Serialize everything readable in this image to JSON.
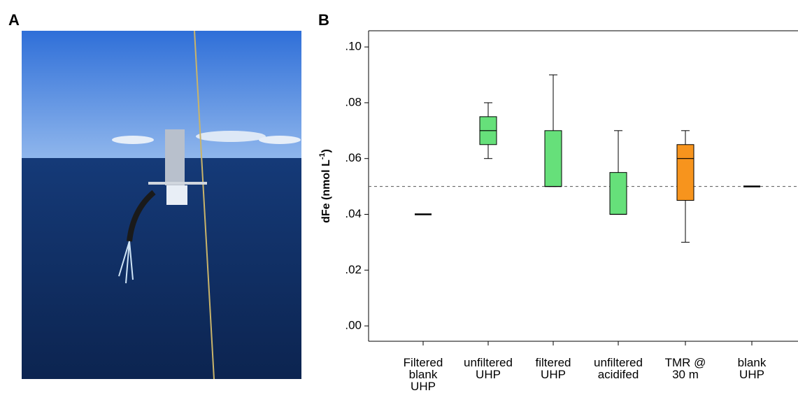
{
  "panels": {
    "a": "A",
    "b": "B"
  },
  "chart_data": {
    "type": "box",
    "ylabel": {
      "text": "dFe (nmol L",
      "superscript": "-1",
      "close": ")"
    },
    "categories": [
      [
        "Filtered",
        "blank",
        "UHP"
      ],
      [
        "unfiltered",
        "UHP"
      ],
      [
        "filtered",
        "UHP"
      ],
      [
        "unfiltered",
        "acidifed"
      ],
      [
        "TMR @",
        "30 m"
      ],
      [
        "blank",
        "UHP"
      ]
    ],
    "min": [
      0.04,
      0.06,
      0.05,
      0.04,
      0.03,
      0.05
    ],
    "q1": [
      0.04,
      0.065,
      0.05,
      0.04,
      0.045,
      0.05
    ],
    "median": [
      0.04,
      0.07,
      0.05,
      0.04,
      0.06,
      0.05
    ],
    "q3": [
      0.04,
      0.075,
      0.07,
      0.055,
      0.065,
      0.05
    ],
    "max": [
      0.04,
      0.08,
      0.09,
      0.07,
      0.07,
      0.05
    ],
    "colors": [
      "#000000",
      "#66e07a",
      "#66e07a",
      "#66e07a",
      "#f7941d",
      "#000000"
    ],
    "hline": 0.05,
    "ylim": [
      -0.0055,
      0.1058
    ],
    "yticks": [
      {
        "value": 0,
        "label": ".00"
      },
      {
        "value": 0.02,
        "label": ".02"
      },
      {
        "value": 0.04,
        "label": ".04"
      },
      {
        "value": 0.06,
        "label": ".06"
      },
      {
        "value": 0.08,
        "label": ".08"
      },
      {
        "value": 0.1,
        "label": ".10"
      }
    ]
  }
}
